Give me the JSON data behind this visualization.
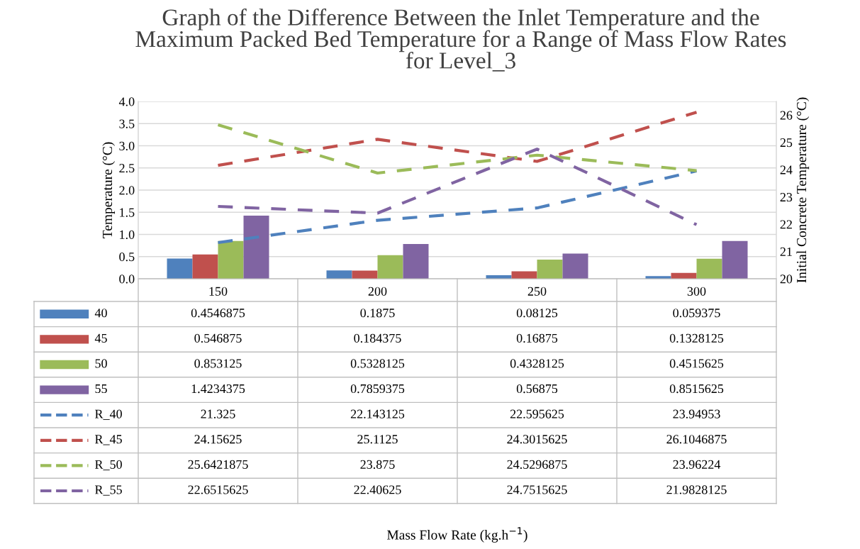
{
  "chart_data": {
    "type": "bar",
    "title": "Graph of the Difference Between the Inlet Temperature and the Maximum Packed Bed Temperature for a Range of Mass Flow Rates for Level_3",
    "annotations": [
      "Mass Flow Rate (kg.h$^{−1}$)"
    ],
    "ylabel": "Temperature (°C)",
    "y2label": "Initial Concrete Temperature (°C)",
    "categories": [
      "150",
      "200",
      "250",
      "300"
    ],
    "series": [
      {
        "name": "40",
        "color": "#4f81bd",
        "values": [
          0.4546875,
          0.1875,
          0.08125,
          0.059375
        ]
      },
      {
        "name": "45",
        "color": "#c0504d",
        "values": [
          0.546875,
          0.184375,
          0.16875,
          0.1328125
        ]
      },
      {
        "name": "50",
        "color": "#9bbb59",
        "values": [
          0.853125,
          0.5328125,
          0.4328125,
          0.4515625
        ]
      },
      {
        "name": "55",
        "color": "#8064a2",
        "values": [
          1.4234375,
          0.7859375,
          0.56875,
          0.8515625
        ]
      },
      {
        "name": "R_40",
        "type": "line",
        "axis": "y2",
        "line_style": "dashed",
        "color": "#4f81bd",
        "values": [
          21.325,
          22.143125,
          22.595625,
          23.94953
        ]
      },
      {
        "name": "R_45",
        "type": "line",
        "axis": "y2",
        "line_style": "dashed",
        "color": "#c0504d",
        "values": [
          24.15625,
          25.1125,
          24.3015625,
          26.1046875
        ]
      },
      {
        "name": "R_50",
        "type": "line",
        "axis": "y2",
        "line_style": "dashed",
        "color": "#9bbb59",
        "values": [
          25.6421875,
          23.875,
          24.5296875,
          23.96224
        ]
      },
      {
        "name": "R_55",
        "type": "line",
        "axis": "y2",
        "line_style": "dashed",
        "color": "#8064a2",
        "values": [
          22.6515625,
          22.40625,
          24.7515625,
          21.9828125
        ]
      }
    ],
    "ylim": [
      0,
      4
    ],
    "yticks": [
      {
        "value": 0,
        "label": "0.0"
      },
      {
        "value": 0.5,
        "label": "0.5"
      },
      {
        "value": 1,
        "label": "1.0"
      },
      {
        "value": 1.5,
        "label": "1.5"
      },
      {
        "value": 2,
        "label": "2.0"
      },
      {
        "value": 2.5,
        "label": "2.5"
      },
      {
        "value": 3,
        "label": "3.0"
      },
      {
        "value": 3.5,
        "label": "3.5"
      },
      {
        "value": 4,
        "label": "4.0"
      }
    ],
    "y2lim": [
      20,
      26.5
    ],
    "y2ticks": [
      20,
      21,
      22,
      23,
      24,
      25,
      26
    ],
    "grid": "y",
    "legend": "bottom",
    "data_labels": true
  }
}
